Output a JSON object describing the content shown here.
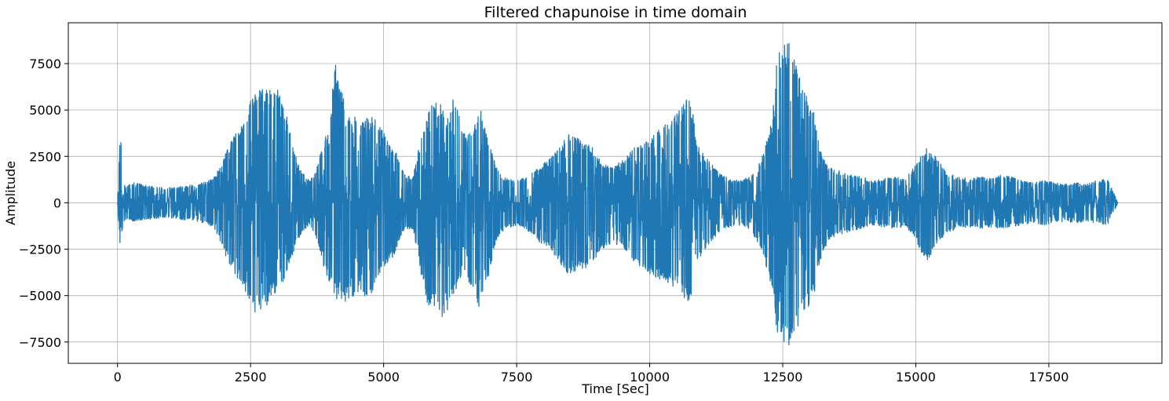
{
  "chart_data": {
    "type": "line",
    "title": "Filtered chapunoise in time domain",
    "xlabel": "Time [Sec]",
    "ylabel": "Amplitude",
    "xlim": [
      -925,
      19625
    ],
    "ylim": [
      -8650,
      9700
    ],
    "xticks": [
      0,
      2500,
      5000,
      7500,
      10000,
      12500,
      15000,
      17500
    ],
    "xtick_labels": [
      "0",
      "2500",
      "5000",
      "7500",
      "10000",
      "12500",
      "15000",
      "17500"
    ],
    "yticks": [
      -7500,
      -5000,
      -2500,
      0,
      2500,
      5000,
      7500
    ],
    "ytick_labels": [
      "−7500",
      "−5000",
      "−2500",
      "0",
      "2500",
      "5000",
      "7500"
    ],
    "grid": true,
    "series": [
      {
        "color": "#1f77b4",
        "x_range": [
          0,
          18800
        ],
        "envelope": {
          "x": [
            0,
            50,
            100,
            150,
            300,
            600,
            900,
            1200,
            1500,
            1800,
            1950,
            2050,
            2200,
            2300,
            2400,
            2500,
            2600,
            2700,
            2800,
            2900,
            3000,
            3100,
            3200,
            3300,
            3400,
            3500,
            3600,
            3700,
            3800,
            3950,
            4100,
            4200,
            4300,
            4400,
            4500,
            4600,
            4700,
            4800,
            4900,
            5000,
            5100,
            5200,
            5300,
            5400,
            5550,
            5650,
            5750,
            5850,
            6000,
            6100,
            6200,
            6300,
            6400,
            6500,
            6600,
            6700,
            6800,
            6900,
            7000,
            7100,
            7200,
            7300,
            7500,
            7700,
            7900,
            8100,
            8300,
            8500,
            8700,
            8900,
            9100,
            9300,
            9500,
            9700,
            9900,
            10100,
            10300,
            10500,
            10700,
            10800,
            10900,
            11100,
            11300,
            11500,
            11700,
            11900,
            12100,
            12300,
            12400,
            12500,
            12600,
            12700,
            12800,
            12900,
            13000,
            13100,
            13200,
            13300,
            13400,
            13600,
            13800,
            14000,
            14200,
            14400,
            14600,
            14800,
            15000,
            15200,
            15400,
            15600,
            15800,
            16000,
            16200,
            16400,
            16600,
            16800,
            17000,
            17200,
            17400,
            17600,
            17800,
            18000,
            18200,
            18400,
            18600,
            18800
          ],
          "max": [
            0,
            4200,
            1300,
            900,
            1100,
            900,
            800,
            900,
            1000,
            1300,
            2100,
            2800,
            3700,
            4000,
            4700,
            5600,
            6000,
            6200,
            6400,
            5900,
            6300,
            5200,
            4500,
            3000,
            2100,
            1600,
            1200,
            1500,
            2600,
            3900,
            7600,
            6200,
            5000,
            4700,
            4800,
            4600,
            4600,
            4800,
            4200,
            3800,
            3200,
            3000,
            2200,
            1500,
            1400,
            2800,
            4200,
            5200,
            5500,
            5200,
            4500,
            5600,
            4900,
            3700,
            3800,
            4000,
            5300,
            4100,
            3200,
            2000,
            1500,
            1300,
            1200,
            1400,
            1900,
            2300,
            3000,
            3900,
            3400,
            3100,
            2200,
            2000,
            2300,
            3000,
            3200,
            3800,
            4300,
            4800,
            5700,
            5200,
            3200,
            2300,
            1600,
            1300,
            1200,
            1500,
            2400,
            4500,
            8000,
            8500,
            8800,
            7800,
            7200,
            6000,
            5400,
            4800,
            2900,
            2200,
            1900,
            1700,
            1500,
            1400,
            1200,
            1300,
            1400,
            1300,
            2100,
            3000,
            2400,
            1600,
            1400,
            1300,
            1400,
            1300,
            1500,
            1400,
            1200,
            1100,
            1200,
            1100,
            1000,
            1100,
            1000,
            1200,
            1300,
            0
          ],
          "min": [
            0,
            -2600,
            -1200,
            -900,
            -1000,
            -900,
            -800,
            -900,
            -1000,
            -1300,
            -2200,
            -3000,
            -3800,
            -4300,
            -4800,
            -5400,
            -6100,
            -5800,
            -5600,
            -5000,
            -4800,
            -4400,
            -3500,
            -2700,
            -2000,
            -1500,
            -1200,
            -1600,
            -2700,
            -4200,
            -5100,
            -5500,
            -5300,
            -5100,
            -5000,
            -4800,
            -5300,
            -4700,
            -4000,
            -3500,
            -3200,
            -2800,
            -2000,
            -1400,
            -1400,
            -2900,
            -4700,
            -5800,
            -5500,
            -6400,
            -6000,
            -5300,
            -4400,
            -3600,
            -4500,
            -4800,
            -6000,
            -4900,
            -3600,
            -2200,
            -1600,
            -1400,
            -1200,
            -1500,
            -2100,
            -2400,
            -3200,
            -4000,
            -3600,
            -3400,
            -2500,
            -2200,
            -2400,
            -3200,
            -3600,
            -4000,
            -4300,
            -4600,
            -5400,
            -4900,
            -3100,
            -2300,
            -1600,
            -1300,
            -1200,
            -1500,
            -2500,
            -4600,
            -7300,
            -7500,
            -7800,
            -7100,
            -6600,
            -6000,
            -5500,
            -4800,
            -3200,
            -2400,
            -1900,
            -1700,
            -1500,
            -1400,
            -1200,
            -1300,
            -1400,
            -1300,
            -2000,
            -3300,
            -2200,
            -1600,
            -1400,
            -1300,
            -1400,
            -1300,
            -1400,
            -1300,
            -1200,
            -1100,
            -1200,
            -1100,
            -1000,
            -1100,
            -1000,
            -1100,
            -1200,
            0
          ]
        }
      }
    ]
  }
}
